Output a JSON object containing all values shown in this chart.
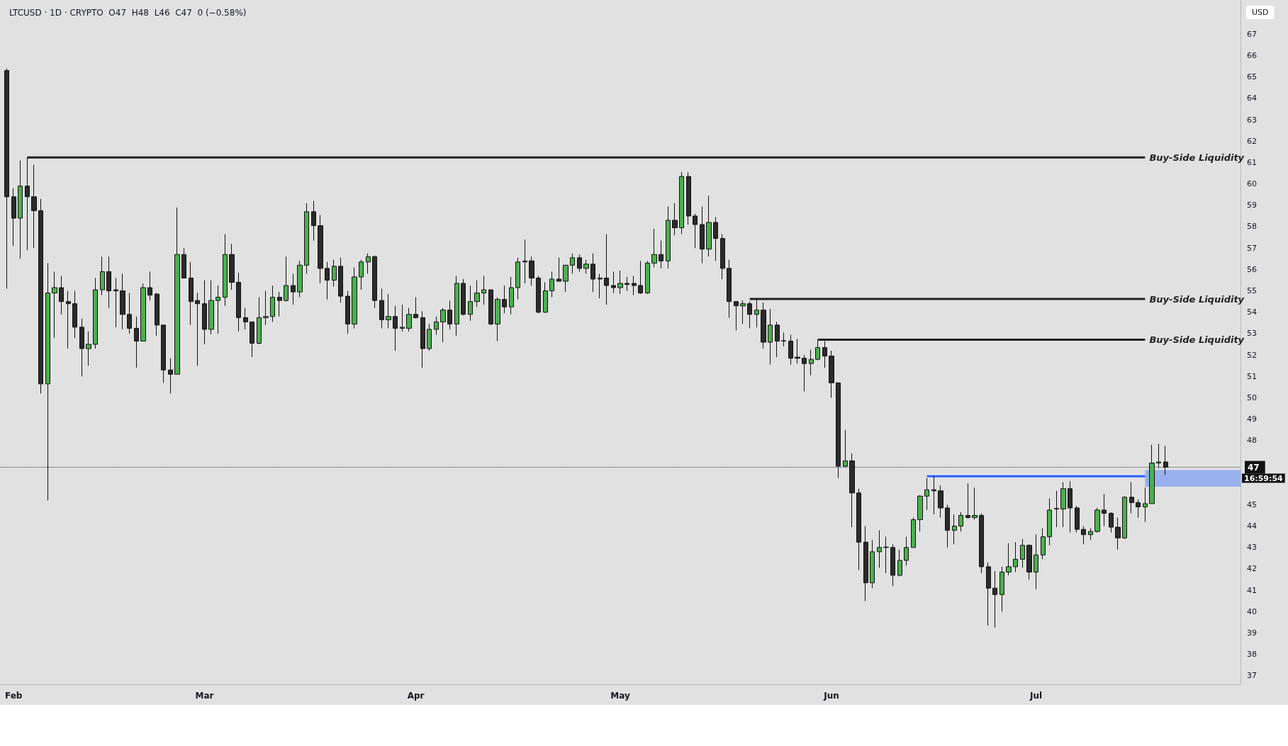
{
  "chart_data": {
    "type": "candlestick",
    "title": "LTCUSD · 1D · CRYPTO  O47  H48  L46  C47  0 (−0.58%)",
    "xlim": [
      "--01-30",
      "--07-31"
    ],
    "xticks": [
      {
        "value": "--02-01",
        "label": "Feb"
      },
      {
        "value": "--03-01",
        "label": "Mar"
      },
      {
        "value": "--04-01",
        "label": "Apr"
      },
      {
        "value": "--05-01",
        "label": "May"
      },
      {
        "value": "--06-01",
        "label": "Jun"
      },
      {
        "value": "--07-01",
        "label": "Jul"
      }
    ],
    "ylim": [
      36.6,
      68.6
    ],
    "yticks": [
      37,
      38,
      39,
      40,
      41,
      42,
      43,
      44,
      45,
      48,
      49,
      50,
      51,
      52,
      53,
      54,
      55,
      56,
      57,
      58,
      59,
      60,
      61,
      62,
      63,
      64,
      65,
      66,
      67
    ],
    "grid": false,
    "series": [
      {
        "type": "candlestick",
        "x": [
          "--01-31",
          "--02-01",
          "--02-02",
          "--02-03",
          "--02-04",
          "--02-05",
          "--02-06",
          "--02-07",
          "--02-08",
          "--02-09",
          "--02-10",
          "--02-11",
          "--02-12",
          "--02-13",
          "--02-14",
          "--02-15",
          "--02-16",
          "--02-17",
          "--02-18",
          "--02-19",
          "--02-20",
          "--02-21",
          "--02-22",
          "--02-23",
          "--02-24",
          "--02-25",
          "--02-26",
          "--02-27",
          "--02-28",
          "--03-01",
          "--03-02",
          "--03-03",
          "--03-04",
          "--03-05",
          "--03-06",
          "--03-07",
          "--03-08",
          "--03-09",
          "--03-10",
          "--03-11",
          "--03-12",
          "--03-13",
          "--03-14",
          "--03-15",
          "--03-16",
          "--03-17",
          "--03-18",
          "--03-19",
          "--03-20",
          "--03-21",
          "--03-22",
          "--03-23",
          "--03-24",
          "--03-25",
          "--03-26",
          "--03-27",
          "--03-28",
          "--03-29",
          "--03-30",
          "--03-31",
          "--04-01",
          "--04-02",
          "--04-03",
          "--04-04",
          "--04-05",
          "--04-06",
          "--04-07",
          "--04-08",
          "--04-09",
          "--04-10",
          "--04-11",
          "--04-12",
          "--04-13",
          "--04-14",
          "--04-15",
          "--04-16",
          "--04-17",
          "--04-18",
          "--04-19",
          "--04-20",
          "--04-21",
          "--04-22",
          "--04-23",
          "--04-24",
          "--04-25",
          "--04-26",
          "--04-27",
          "--04-28",
          "--04-29",
          "--04-30",
          "--05-01",
          "--05-02",
          "--05-03",
          "--05-04",
          "--05-05",
          "--05-06",
          "--05-07",
          "--05-08",
          "--05-09",
          "--05-10",
          "--05-11",
          "--05-12",
          "--05-13",
          "--05-14",
          "--05-15",
          "--05-16",
          "--05-17",
          "--05-18",
          "--05-19",
          "--05-20",
          "--05-21",
          "--05-22",
          "--05-23",
          "--05-24",
          "--05-25",
          "--05-26",
          "--05-27",
          "--05-28",
          "--05-29",
          "--05-30",
          "--05-31",
          "--06-01",
          "--06-02",
          "--06-03",
          "--06-04",
          "--06-05",
          "--06-06",
          "--06-07",
          "--06-08",
          "--06-09",
          "--06-10",
          "--06-11",
          "--06-12",
          "--06-13",
          "--06-14",
          "--06-15",
          "--06-16",
          "--06-17",
          "--06-18",
          "--06-19",
          "--06-20",
          "--06-21",
          "--06-22",
          "--06-23",
          "--06-24",
          "--06-25",
          "--06-26",
          "--06-27",
          "--06-28",
          "--06-29",
          "--06-30",
          "--07-01",
          "--07-02",
          "--07-03",
          "--07-04",
          "--07-05",
          "--07-06",
          "--07-07",
          "--07-08",
          "--07-09",
          "--07-10",
          "--07-11",
          "--07-12",
          "--07-13",
          "--07-14",
          "--07-15",
          "--07-16",
          "--07-17",
          "--07-18",
          "--07-19",
          "--07-20"
        ],
        "ohlc": [
          [
            65.3,
            65.4,
            55.1,
            59.4
          ],
          [
            59.4,
            59.8,
            57.1,
            58.4
          ],
          [
            58.4,
            61.1,
            56.5,
            59.9
          ],
          [
            59.9,
            61.24,
            56.9,
            59.4
          ],
          [
            59.4,
            60.9,
            57.0,
            58.75
          ],
          [
            58.75,
            59.3,
            50.2,
            50.65
          ],
          [
            50.65,
            56.3,
            45.2,
            54.9
          ],
          [
            54.9,
            55.9,
            52.8,
            55.15
          ],
          [
            55.15,
            55.7,
            53.9,
            54.5
          ],
          [
            54.5,
            55.0,
            52.3,
            54.4
          ],
          [
            54.4,
            55.0,
            52.8,
            53.3
          ],
          [
            53.3,
            53.7,
            51.0,
            52.3
          ],
          [
            52.3,
            53.1,
            51.5,
            52.5
          ],
          [
            52.5,
            55.6,
            52.3,
            55.05
          ],
          [
            55.05,
            56.6,
            54.8,
            55.9
          ],
          [
            55.9,
            56.6,
            54.2,
            55.0
          ],
          [
            55.05,
            55.6,
            53.3,
            55.0
          ],
          [
            55.0,
            55.8,
            53.2,
            53.9
          ],
          [
            53.9,
            54.9,
            53.0,
            53.25
          ],
          [
            53.25,
            53.8,
            51.4,
            52.65
          ],
          [
            52.65,
            55.35,
            52.65,
            55.15
          ],
          [
            55.15,
            55.9,
            54.55,
            54.8
          ],
          [
            54.85,
            54.9,
            52.9,
            53.4
          ],
          [
            53.4,
            53.4,
            50.7,
            51.3
          ],
          [
            51.3,
            51.85,
            50.2,
            51.1
          ],
          [
            51.1,
            58.9,
            51.1,
            56.7
          ],
          [
            56.7,
            57.0,
            55.6,
            55.6
          ],
          [
            55.6,
            56.35,
            53.4,
            54.5
          ],
          [
            54.55,
            54.9,
            51.5,
            54.4
          ],
          [
            54.4,
            55.5,
            52.5,
            53.2
          ],
          [
            53.2,
            55.5,
            52.97,
            54.55
          ],
          [
            54.55,
            55.25,
            53.0,
            54.7
          ],
          [
            54.7,
            57.65,
            54.3,
            56.7
          ],
          [
            56.7,
            57.2,
            55.05,
            55.4
          ],
          [
            55.4,
            55.85,
            53.1,
            53.75
          ],
          [
            53.75,
            54.2,
            53.2,
            53.55
          ],
          [
            53.55,
            53.55,
            51.9,
            52.55
          ],
          [
            52.55,
            54.7,
            52.5,
            53.75
          ],
          [
            53.75,
            55.0,
            53.4,
            53.8
          ],
          [
            53.8,
            55.25,
            53.55,
            54.7
          ],
          [
            54.7,
            54.95,
            53.8,
            54.55
          ],
          [
            54.55,
            56.6,
            54.5,
            55.25
          ],
          [
            55.25,
            55.8,
            54.35,
            54.95
          ],
          [
            54.95,
            56.4,
            54.7,
            56.2
          ],
          [
            56.2,
            59.1,
            55.8,
            58.7
          ],
          [
            58.7,
            59.2,
            57.35,
            58.05
          ],
          [
            58.05,
            58.55,
            55.35,
            56.05
          ],
          [
            56.05,
            56.35,
            54.6,
            55.5
          ],
          [
            55.5,
            56.45,
            55.2,
            56.15
          ],
          [
            56.15,
            56.55,
            54.45,
            54.75
          ],
          [
            54.75,
            55.0,
            53.0,
            53.45
          ],
          [
            53.45,
            56.1,
            53.25,
            55.65
          ],
          [
            55.65,
            56.45,
            55.05,
            56.35
          ],
          [
            56.35,
            56.75,
            55.8,
            56.6
          ],
          [
            56.6,
            56.65,
            54.2,
            54.55
          ],
          [
            54.55,
            55.1,
            53.25,
            53.65
          ],
          [
            53.65,
            54.85,
            53.25,
            53.8
          ],
          [
            53.8,
            54.3,
            52.2,
            53.25
          ],
          [
            53.25,
            54.35,
            53.1,
            53.3
          ],
          [
            53.25,
            54.2,
            53.1,
            53.9
          ],
          [
            53.9,
            54.7,
            53.7,
            53.75
          ],
          [
            53.75,
            54.05,
            51.4,
            52.3
          ],
          [
            52.3,
            53.45,
            52.2,
            53.2
          ],
          [
            53.2,
            53.8,
            52.95,
            53.55
          ],
          [
            53.55,
            54.2,
            52.6,
            54.1
          ],
          [
            54.1,
            54.55,
            53.2,
            53.45
          ],
          [
            53.45,
            55.7,
            52.9,
            55.35
          ],
          [
            55.35,
            55.55,
            53.85,
            53.9
          ],
          [
            53.9,
            55.25,
            53.6,
            54.5
          ],
          [
            54.5,
            55.5,
            54.25,
            54.9
          ],
          [
            54.9,
            55.7,
            54.35,
            55.05
          ],
          [
            55.05,
            55.05,
            53.4,
            53.45
          ],
          [
            53.45,
            54.7,
            52.65,
            54.6
          ],
          [
            54.6,
            55.25,
            53.95,
            54.25
          ],
          [
            54.25,
            55.65,
            53.9,
            55.15
          ],
          [
            55.15,
            56.55,
            54.6,
            56.35
          ],
          [
            56.35,
            57.4,
            55.35,
            56.4
          ],
          [
            56.4,
            56.6,
            55.25,
            55.6
          ],
          [
            55.6,
            55.7,
            53.95,
            54.0
          ],
          [
            54.0,
            55.4,
            53.97,
            55.0
          ],
          [
            55.0,
            55.9,
            54.7,
            55.55
          ],
          [
            55.55,
            56.55,
            55.45,
            55.45
          ],
          [
            55.45,
            56.2,
            54.95,
            56.2
          ],
          [
            56.2,
            56.75,
            55.8,
            56.55
          ],
          [
            56.55,
            56.7,
            55.9,
            56.05
          ],
          [
            56.05,
            56.45,
            55.8,
            56.25
          ],
          [
            56.25,
            56.75,
            54.95,
            55.55
          ],
          [
            55.55,
            55.8,
            54.65,
            55.6
          ],
          [
            55.6,
            57.65,
            54.35,
            55.25
          ],
          [
            55.25,
            55.9,
            54.9,
            55.15
          ],
          [
            55.15,
            55.95,
            54.85,
            55.35
          ],
          [
            55.35,
            55.65,
            55.0,
            55.3
          ],
          [
            55.35,
            55.7,
            54.8,
            55.25
          ],
          [
            55.25,
            56.4,
            54.85,
            54.9
          ],
          [
            54.9,
            56.4,
            54.85,
            56.3
          ],
          [
            56.3,
            57.9,
            56.1,
            56.7
          ],
          [
            56.7,
            57.35,
            56.05,
            56.4
          ],
          [
            56.4,
            58.95,
            56.05,
            58.3
          ],
          [
            58.3,
            59.1,
            57.6,
            57.95
          ],
          [
            57.95,
            60.55,
            57.65,
            60.35
          ],
          [
            60.35,
            60.55,
            58.1,
            58.5
          ],
          [
            58.5,
            58.6,
            57.0,
            58.1
          ],
          [
            58.1,
            58.95,
            56.3,
            56.95
          ],
          [
            56.95,
            59.45,
            56.6,
            58.2
          ],
          [
            58.2,
            58.45,
            56.4,
            57.45
          ],
          [
            57.45,
            57.65,
            55.55,
            56.05
          ],
          [
            56.05,
            56.45,
            53.75,
            54.5
          ],
          [
            54.5,
            54.5,
            53.15,
            54.3
          ],
          [
            54.3,
            54.55,
            53.45,
            54.4
          ],
          [
            54.4,
            54.5,
            53.25,
            53.9
          ],
          [
            53.9,
            54.62,
            53.3,
            54.1
          ],
          [
            54.1,
            54.45,
            52.3,
            52.6
          ],
          [
            52.6,
            54.15,
            51.55,
            53.4
          ],
          [
            53.4,
            53.55,
            51.9,
            52.65
          ],
          [
            52.67,
            53.05,
            52.4,
            52.65
          ],
          [
            52.65,
            52.95,
            51.55,
            51.85
          ],
          [
            51.9,
            52.75,
            51.6,
            51.85
          ],
          [
            51.85,
            52.0,
            50.3,
            51.6
          ],
          [
            51.6,
            52.25,
            51.05,
            51.8
          ],
          [
            51.8,
            52.72,
            51.75,
            52.35
          ],
          [
            52.35,
            52.65,
            51.4,
            51.95
          ],
          [
            51.95,
            52.2,
            50.0,
            50.7
          ],
          [
            50.7,
            50.7,
            46.25,
            46.8
          ],
          [
            46.8,
            48.5,
            46.75,
            47.05
          ],
          [
            47.05,
            47.4,
            43.95,
            45.55
          ],
          [
            45.55,
            45.75,
            41.95,
            43.25
          ],
          [
            43.25,
            44.0,
            40.5,
            41.35
          ],
          [
            41.35,
            43.35,
            41.1,
            42.8
          ],
          [
            42.8,
            43.8,
            42.05,
            43.0
          ],
          [
            43.02,
            43.5,
            41.8,
            43.0
          ],
          [
            43.0,
            43.15,
            41.2,
            41.7
          ],
          [
            41.7,
            42.9,
            41.65,
            42.4
          ],
          [
            42.4,
            43.5,
            42.15,
            43.0
          ],
          [
            43.0,
            44.4,
            43.0,
            44.3
          ],
          [
            44.3,
            45.45,
            43.75,
            45.4
          ],
          [
            45.4,
            46.25,
            44.75,
            45.7
          ],
          [
            45.7,
            46.33,
            44.55,
            45.65
          ],
          [
            45.65,
            45.9,
            44.4,
            44.85
          ],
          [
            44.85,
            45.0,
            43.0,
            43.8
          ],
          [
            43.8,
            44.55,
            43.15,
            44.0
          ],
          [
            44.0,
            44.65,
            43.75,
            44.5
          ],
          [
            44.5,
            46.0,
            44.35,
            44.4
          ],
          [
            44.4,
            45.8,
            44.3,
            44.5
          ],
          [
            44.5,
            44.6,
            41.8,
            42.1
          ],
          [
            42.1,
            42.3,
            39.35,
            41.1
          ],
          [
            41.1,
            41.9,
            39.25,
            40.8
          ],
          [
            40.8,
            42.1,
            40.0,
            41.85
          ],
          [
            41.85,
            43.2,
            41.7,
            42.1
          ],
          [
            42.1,
            43.25,
            41.85,
            42.45
          ],
          [
            42.45,
            43.4,
            42.05,
            43.1
          ],
          [
            43.1,
            43.15,
            41.5,
            41.85
          ],
          [
            41.85,
            43.6,
            41.05,
            42.65
          ],
          [
            42.65,
            43.9,
            42.45,
            43.5
          ],
          [
            43.5,
            45.3,
            43.1,
            44.75
          ],
          [
            44.82,
            45.65,
            43.95,
            44.8
          ],
          [
            44.8,
            46.05,
            43.95,
            45.75
          ],
          [
            45.75,
            46.1,
            43.7,
            44.85
          ],
          [
            44.85,
            44.95,
            43.7,
            43.85
          ],
          [
            43.85,
            44.0,
            43.15,
            43.6
          ],
          [
            43.6,
            43.9,
            43.35,
            43.75
          ],
          [
            43.75,
            44.85,
            43.7,
            44.75
          ],
          [
            44.75,
            45.5,
            44.0,
            44.6
          ],
          [
            44.6,
            44.65,
            43.7,
            43.95
          ],
          [
            43.95,
            44.4,
            42.9,
            43.45
          ],
          [
            43.45,
            45.4,
            43.4,
            45.35
          ],
          [
            45.35,
            46.05,
            44.6,
            45.1
          ],
          [
            45.1,
            45.25,
            44.4,
            44.9
          ],
          [
            44.9,
            45.8,
            44.2,
            45.05
          ],
          [
            45.05,
            47.8,
            45.05,
            46.95
          ],
          [
            46.95,
            47.85,
            46.7,
            47.0
          ],
          [
            47.0,
            47.75,
            46.4,
            46.75
          ]
        ]
      },
      {
        "type": "line",
        "x": [
          "--02-03",
          "--07-17"
        ],
        "values": [
          61.24,
          61.24
        ],
        "color": "#222222"
      },
      {
        "type": "line",
        "x": [
          "--05-20",
          "--07-17"
        ],
        "values": [
          54.62,
          54.62
        ],
        "color": "#222222"
      },
      {
        "type": "line",
        "x": [
          "--05-30",
          "--07-17"
        ],
        "values": [
          52.72,
          52.72
        ],
        "color": "#222222"
      },
      {
        "type": "line",
        "x": [
          "--06-15",
          "--07-17"
        ],
        "values": [
          46.33,
          46.33
        ],
        "color": "#2962ff"
      }
    ],
    "bands": [
      {
        "axis": "y",
        "from": 45.84,
        "to": 46.62,
        "color": "#98b0ee"
      }
    ],
    "ref_lines": [
      {
        "axis": "y",
        "value": 46.75,
        "label": "47",
        "line_style": "dotted",
        "color": "#333333"
      }
    ],
    "annotations": [
      "USD",
      "16:59:54",
      {
        "text": "Buy-Side Liquidity",
        "x": "--07-17",
        "y": 61.24
      },
      {
        "text": "Buy-Side Liquidity",
        "x": "--07-17",
        "y": 54.62
      },
      {
        "text": "Buy-Side Liquidity",
        "x": "--07-17",
        "y": 52.72
      }
    ]
  }
}
